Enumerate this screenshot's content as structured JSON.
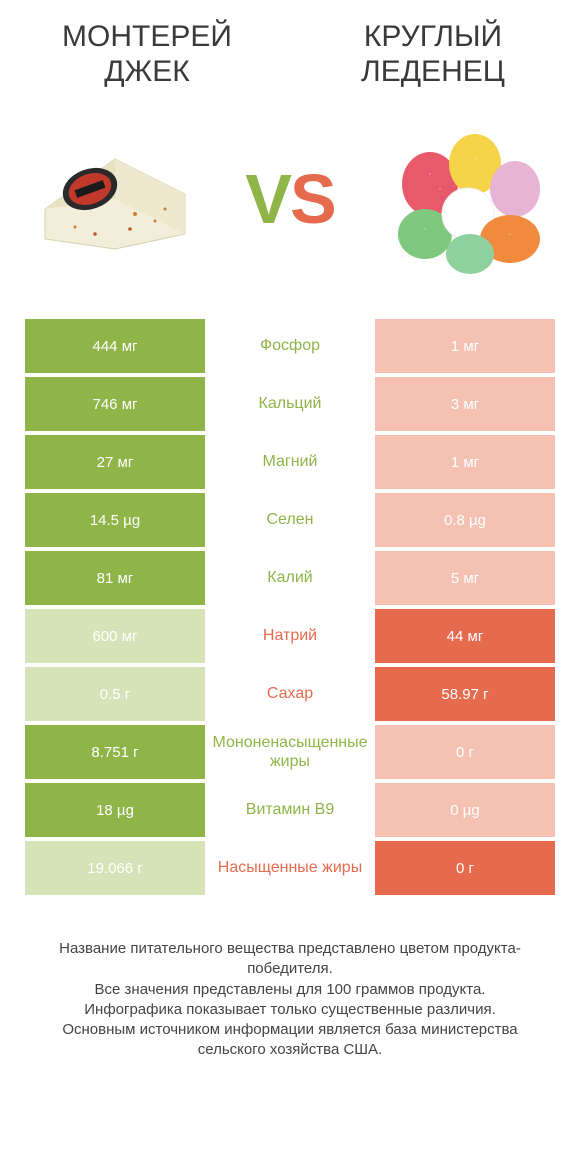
{
  "left": {
    "title": "МОНТЕРЕЙ ДЖЕК",
    "color_full": "#8fb548",
    "color_empty": "#d6e3b8"
  },
  "right": {
    "title": "КРУГЛЫЙ ЛЕДЕНЕЦ",
    "color_full": "#e66a4e",
    "color_empty": "#f4c1b3"
  },
  "mid_bg": "#ffffff",
  "rows": [
    {
      "label": "Фосфор",
      "left": "444 мг",
      "right": "1 мг",
      "winner": "left"
    },
    {
      "label": "Кальций",
      "left": "746 мг",
      "right": "3 мг",
      "winner": "left"
    },
    {
      "label": "Магний",
      "left": "27 мг",
      "right": "1 мг",
      "winner": "left"
    },
    {
      "label": "Селен",
      "left": "14.5 µg",
      "right": "0.8 µg",
      "winner": "left"
    },
    {
      "label": "Калий",
      "left": "81 мг",
      "right": "5 мг",
      "winner": "left"
    },
    {
      "label": "Натрий",
      "left": "600 мг",
      "right": "44 мг",
      "winner": "right"
    },
    {
      "label": "Сахар",
      "left": "0.5 г",
      "right": "58.97 г",
      "winner": "right"
    },
    {
      "label": "Мононенасыщенные жиры",
      "left": "8.751 г",
      "right": "0 г",
      "winner": "left"
    },
    {
      "label": "Витамин B9",
      "left": "18 µg",
      "right": "0 µg",
      "winner": "left"
    },
    {
      "label": "Насыщенные жиры",
      "left": "19.066 г",
      "right": "0 г",
      "winner": "right"
    }
  ],
  "footer": {
    "l1": "Название питательного вещества представлено цветом продукта-победителя.",
    "l2": "Все значения представлены для 100 граммов продукта.",
    "l3": "Инфографика показывает только существенные различия.",
    "l4": "Основным источником информации является база министерства сельского хозяйства США."
  },
  "cheese_svg": {
    "body": "#f2eeda",
    "rind": "#e8e2c4",
    "label_bg": "#2a2a2a",
    "label_accent": "#c0392b"
  },
  "candy_colors": [
    "#e85a6b",
    "#f5d547",
    "#7fc97f",
    "#f08a3c",
    "#ffffff",
    "#8fd19e",
    "#e8b4d4"
  ]
}
